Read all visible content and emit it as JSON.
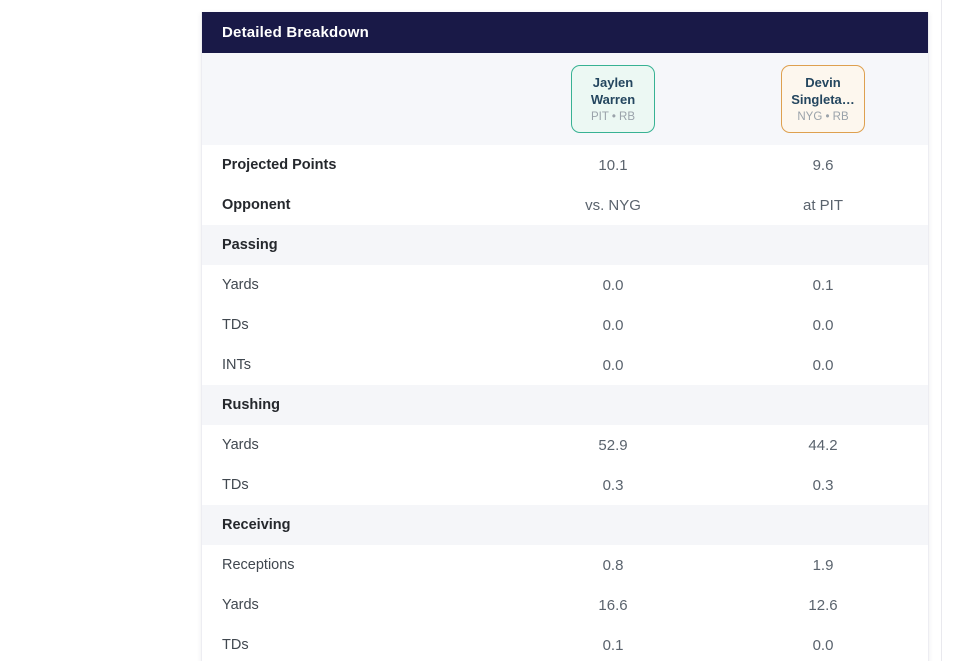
{
  "card": {
    "title": "Detailed Breakdown"
  },
  "players": [
    {
      "line1": "Jaylen",
      "line2": "Warren",
      "meta": "PIT • RB",
      "accent_color": "#38b293",
      "bg_color": "#ecf8f3"
    },
    {
      "line1": "Devin",
      "line2": "Singleta…",
      "meta": "NYG • RB",
      "accent_color": "#dea04f",
      "bg_color": "#fdf7ee"
    }
  ],
  "rows": [
    {
      "type": "stat-bold",
      "label": "Projected Points",
      "v1": "10.1",
      "v2": "9.6"
    },
    {
      "type": "stat-bold",
      "label": "Opponent",
      "v1": "vs. NYG",
      "v2": "at PIT"
    },
    {
      "type": "section",
      "label": "Passing"
    },
    {
      "type": "stat",
      "label": "Yards",
      "v1": "0.0",
      "v2": "0.1"
    },
    {
      "type": "stat",
      "label": "TDs",
      "v1": "0.0",
      "v2": "0.0"
    },
    {
      "type": "stat",
      "label": "INTs",
      "v1": "0.0",
      "v2": "0.0"
    },
    {
      "type": "section",
      "label": "Rushing"
    },
    {
      "type": "stat",
      "label": "Yards",
      "v1": "52.9",
      "v2": "44.2"
    },
    {
      "type": "stat",
      "label": "TDs",
      "v1": "0.3",
      "v2": "0.3"
    },
    {
      "type": "section",
      "label": "Receiving"
    },
    {
      "type": "stat",
      "label": "Receptions",
      "v1": "0.8",
      "v2": "1.9"
    },
    {
      "type": "stat",
      "label": "Yards",
      "v1": "16.6",
      "v2": "12.6"
    },
    {
      "type": "stat",
      "label": "TDs",
      "v1": "0.1",
      "v2": "0.0"
    }
  ],
  "theme": {
    "header_bg": "#191947",
    "section_row_bg": "#f5f6f9",
    "chip_row_bg": "#f6f7fa"
  }
}
